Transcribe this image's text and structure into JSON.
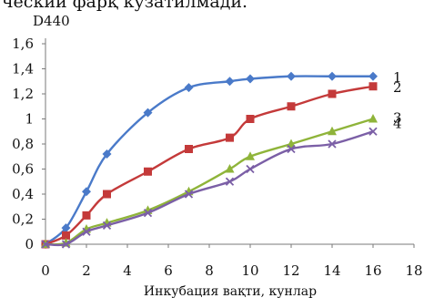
{
  "header_text": "ческий фарқ кузатилмади.",
  "chart_data": {
    "type": "line",
    "ylabel": "D440",
    "xlabel": "Инкубация вақти, кунлар",
    "xlim": [
      0,
      18
    ],
    "ylim": [
      0,
      1.6
    ],
    "x_ticks": [
      "0",
      "2",
      "4",
      "6",
      "8",
      "10",
      "12",
      "14",
      "16",
      "18"
    ],
    "y_ticks": [
      "0",
      "0,2",
      "0,4",
      "0,6",
      "0,8",
      "1",
      "1,2",
      "1,4",
      "1,6"
    ],
    "grid": false,
    "series": [
      {
        "name": "1",
        "color": "#4a7ac9",
        "marker": "diamond",
        "x": [
          0,
          1,
          2,
          3,
          5,
          7,
          9,
          10,
          12,
          14,
          16
        ],
        "y": [
          0,
          0.13,
          0.42,
          0.72,
          1.05,
          1.25,
          1.3,
          1.32,
          1.34,
          1.34,
          1.34
        ]
      },
      {
        "name": "2",
        "color": "#c43a3a",
        "marker": "square",
        "x": [
          0,
          1,
          2,
          3,
          5,
          7,
          9,
          10,
          12,
          14,
          16
        ],
        "y": [
          0,
          0.07,
          0.23,
          0.4,
          0.58,
          0.76,
          0.85,
          1.0,
          1.1,
          1.2,
          1.26
        ]
      },
      {
        "name": "3",
        "color": "#8fb43a",
        "marker": "triangle",
        "x": [
          0,
          1,
          2,
          3,
          5,
          7,
          9,
          10,
          12,
          14,
          16
        ],
        "y": [
          0,
          0.01,
          0.12,
          0.17,
          0.27,
          0.42,
          0.6,
          0.7,
          0.8,
          0.9,
          1.0
        ]
      },
      {
        "name": "4",
        "color": "#7b5fa6",
        "marker": "cross",
        "x": [
          0,
          1,
          2,
          3,
          5,
          7,
          9,
          10,
          12,
          14,
          16
        ],
        "y": [
          0,
          0.0,
          0.1,
          0.15,
          0.25,
          0.4,
          0.5,
          0.6,
          0.76,
          0.8,
          0.9
        ]
      }
    ]
  }
}
